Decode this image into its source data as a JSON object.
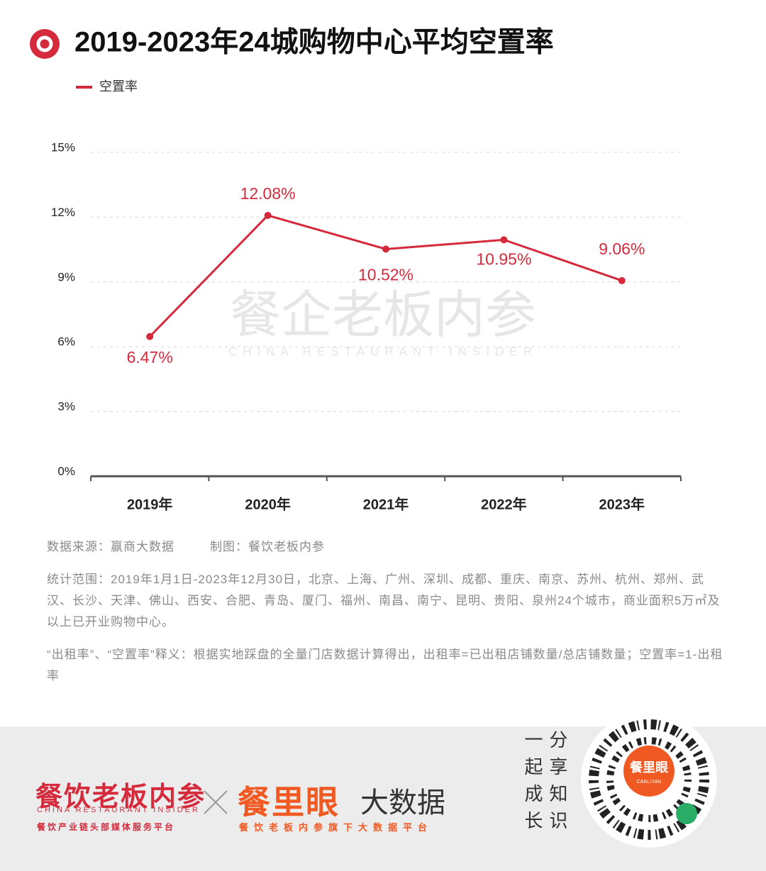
{
  "header": {
    "title": "2019-2023年24城购物中心平均空置率"
  },
  "chart_data": {
    "type": "line",
    "categories": [
      "2019年",
      "2020年",
      "2021年",
      "2022年",
      "2023年"
    ],
    "series": [
      {
        "name": "空置率",
        "color": "#d42a3c",
        "values": [
          6.47,
          12.08,
          10.52,
          10.95,
          9.06
        ],
        "value_labels": [
          "6.47%",
          "12.08%",
          "10.52%",
          "10.95%",
          "9.06%"
        ]
      }
    ],
    "ylim": [
      0,
      15
    ],
    "yticks": [
      {
        "value": 0,
        "label": "0%"
      },
      {
        "value": 3,
        "label": "3%"
      },
      {
        "value": 6,
        "label": "6%"
      },
      {
        "value": 9,
        "label": "9%"
      },
      {
        "value": 12,
        "label": "12%"
      },
      {
        "value": 15,
        "label": "15%"
      }
    ],
    "grid": true,
    "legend": "top-left"
  },
  "watermark": {
    "title": "餐企老板内参",
    "subtitle": "CHINA RESTAURANT INSIDER"
  },
  "notes": {
    "source": "数据来源：赢商大数据",
    "made_by": "制图：餐饮老板内参",
    "scope": "统计范围：2019年1月1日-2023年12月30日，北京、上海、广州、深圳、成都、重庆、南京、苏州、杭州、郑州、武汉、长沙、天津、佛山、西安、合肥、青岛、厦门、福州、南昌、南宁、昆明、贵阳、泉州24个城市，商业面积5万㎡及以上已开业购物中心。",
    "definition": "“出租率”、“空置率”释义：根据实地踩盘的全量门店数据计算得出，出租率=已出租店铺数量/总店铺数量；空置率=1-出租率"
  },
  "footer": {
    "brand1": "餐饮老板内参",
    "brand1_en": "CHINA RESTAURANT INSIDER",
    "brand1_slogan": "餐饮产业链头部媒体服务平台",
    "brand2": "餐里眼",
    "brand2_suffix": "大数据",
    "brand2_slogan": "餐饮老板内参旗下大数据平台",
    "slogan_columns": [
      "一起成长",
      "分享知识"
    ],
    "qr_title": "餐里眼",
    "qr_subtitle": "CANLIYAN"
  }
}
